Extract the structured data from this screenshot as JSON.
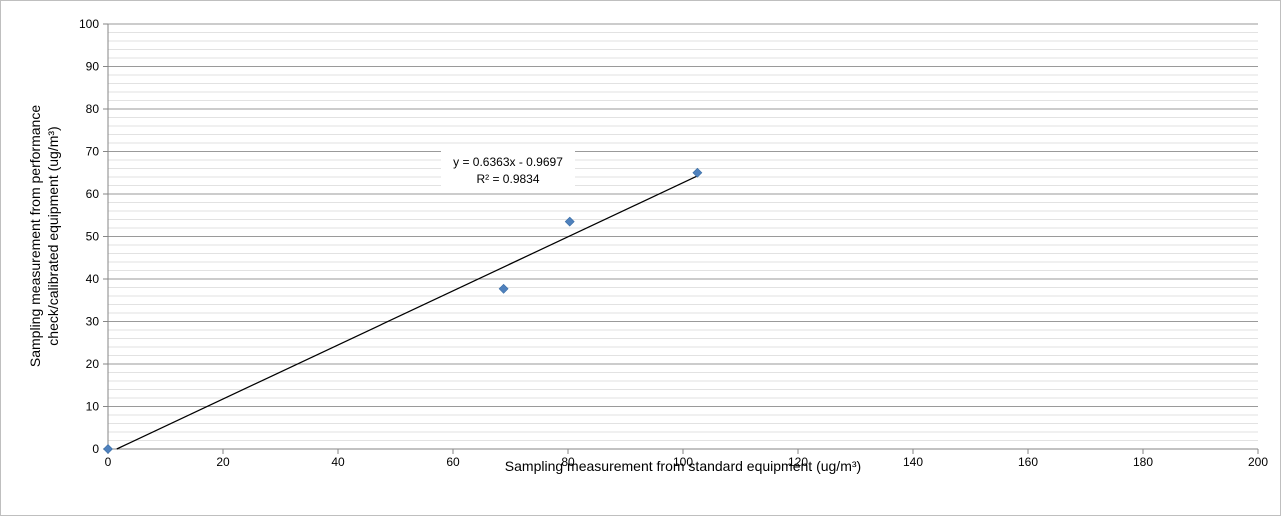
{
  "chart_data": {
    "type": "scatter",
    "title": "",
    "xlabel": "Sampling measurement from standard equipment  (ug/m³)",
    "ylabel_lines": [
      "Sampling measurement from performance",
      "check/calibrated equipment (ug/m³)"
    ],
    "xlim": [
      0,
      200
    ],
    "ylim": [
      0,
      100
    ],
    "x_ticks": [
      0,
      20,
      40,
      60,
      80,
      100,
      120,
      140,
      160,
      180,
      200
    ],
    "y_ticks": [
      0,
      10,
      20,
      30,
      40,
      50,
      60,
      70,
      80,
      90,
      100
    ],
    "minor_grid_step": 2,
    "grid": true,
    "legend": "none",
    "series": [
      {
        "marker": "diamond",
        "color": "#4f81bd",
        "points": [
          {
            "x": 0,
            "y": 0
          },
          {
            "x": 68.8,
            "y": 37.7
          },
          {
            "x": 80.3,
            "y": 53.5
          },
          {
            "x": 102.5,
            "y": 65.0
          }
        ]
      }
    ],
    "trendline": {
      "type": "linear",
      "slope": 0.6363,
      "intercept": -0.9697,
      "x_range": [
        0,
        102.5
      ],
      "color": "#000000",
      "equation": "y = 0.6363x - 0.9697",
      "r_squared": "R² = 0.9834"
    }
  }
}
